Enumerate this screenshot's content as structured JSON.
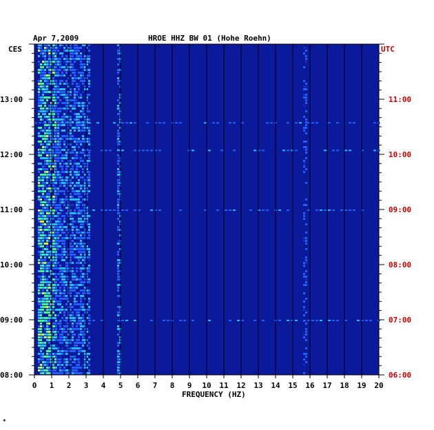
{
  "colors": {
    "background": "#ffffff",
    "plot_bg": "#0a1a9a",
    "grid": "#000000",
    "local_axis": "#000000",
    "utc_axis": "#cc0000"
  },
  "chart_data": {
    "type": "heatmap",
    "date": "Apr 7,2009",
    "station": "HROE HHZ BW 01 (Hohe Roehn)",
    "xlabel": "FREQUENCY (HZ)",
    "xlim": [
      0,
      20
    ],
    "x_ticks": [
      "0",
      "1",
      "2",
      "3",
      "4",
      "5",
      "6",
      "7",
      "8",
      "9",
      "10",
      "11",
      "12",
      "13",
      "14",
      "15",
      "16",
      "17",
      "18",
      "19",
      "20"
    ],
    "left_axis_label": "CES",
    "right_axis_label": "UTC",
    "time_window_local": [
      "08:00",
      "13:50"
    ],
    "left_ticks": [
      "13:00",
      "12:00",
      "11:00",
      "10:00",
      "09:00",
      "08:00"
    ],
    "right_ticks": [
      "11:00",
      "10:00",
      "09:00",
      "08:00",
      "07:00",
      "06:00"
    ],
    "tick_hours_local": [
      13,
      12,
      11,
      10,
      9,
      8
    ],
    "grid_every_hz": 1,
    "colormap": [
      "dark blue",
      "blue",
      "cyan",
      "green",
      "yellow",
      "red"
    ],
    "energy_bands": [
      {
        "from_hz": 0.2,
        "to_hz": 1.2,
        "level": "high"
      },
      {
        "from_hz": 1.2,
        "to_hz": 3.2,
        "level": "medium"
      },
      {
        "from_hz": 4.8,
        "to_hz": 5.0,
        "level": "medium"
      },
      {
        "from_hz": 15.6,
        "to_hz": 15.8,
        "level": "low"
      }
    ],
    "horizontal_events_local": [
      {
        "time": "12:05",
        "from_hz": 0,
        "to_hz": 20
      },
      {
        "time": "11:00",
        "from_hz": 0,
        "to_hz": 20
      },
      {
        "time": "12:35",
        "from_hz": 0,
        "to_hz": 20
      },
      {
        "time": "09:00",
        "from_hz": 0,
        "to_hz": 20
      }
    ],
    "footnote": "*"
  }
}
